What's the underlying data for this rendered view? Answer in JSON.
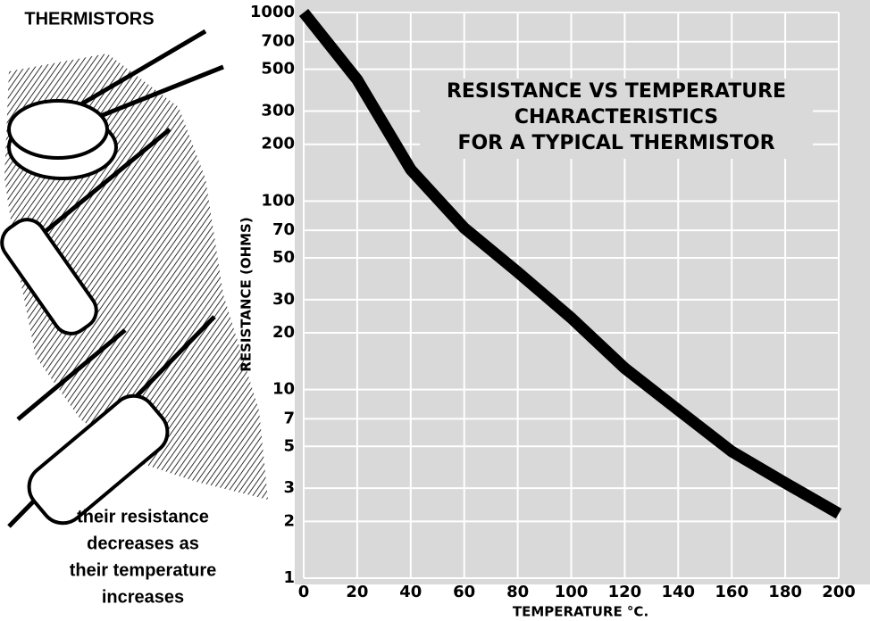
{
  "chart_data": {
    "type": "line",
    "title": [
      "RESISTANCE VS TEMPERATURE",
      "CHARACTERISTICS",
      "FOR A TYPICAL THERMISTOR"
    ],
    "illustration_label": "THERMISTORS",
    "caption": [
      "their resistance",
      "decreases as",
      "their temperature",
      "increases"
    ],
    "xlabel": "TEMPERATURE °C.",
    "ylabel": "RESISTANCE (OHMS)",
    "x": [
      0,
      20,
      40,
      60,
      80,
      100,
      120,
      140,
      160,
      180,
      200
    ],
    "series": [
      {
        "name": "Thermistor",
        "color": "#000000",
        "values": [
          1000,
          440,
          147,
          72,
          42,
          24,
          13,
          7.8,
          4.7,
          3.2,
          2.2
        ]
      }
    ],
    "xlim": [
      0,
      200
    ],
    "xticks": [
      0,
      20,
      40,
      60,
      80,
      100,
      120,
      140,
      160,
      180,
      200
    ],
    "ylim": [
      1,
      1000
    ],
    "yticks": [
      1,
      2,
      3,
      5,
      7,
      10,
      20,
      30,
      50,
      70,
      100,
      200,
      300,
      500,
      700,
      1000
    ],
    "log_y": true,
    "grid": true
  }
}
